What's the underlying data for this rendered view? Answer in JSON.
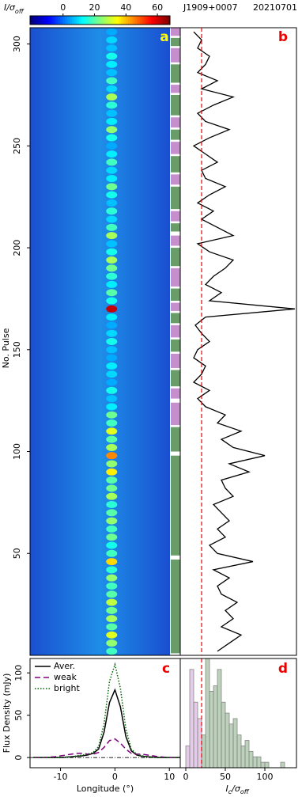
{
  "header": {
    "colorbar_label": {
      "main": "I/σ",
      "sub": "off"
    },
    "source": "J1909+0007",
    "date": "20210701"
  },
  "colorbar": {
    "clim": [
      -21,
      68
    ],
    "ticks": [
      0,
      20,
      40,
      60
    ]
  },
  "panel_a": {
    "type": "heatmap",
    "letter": "a",
    "ylabel": "No. Pulse",
    "ylim": [
      0,
      308
    ],
    "yticks": [
      50,
      100,
      150,
      200,
      250,
      300
    ],
    "pulses": [
      2,
      6,
      10,
      14,
      18,
      22,
      26,
      30,
      34,
      38,
      42,
      46,
      50,
      54,
      58,
      62,
      66,
      70,
      74,
      78,
      82,
      86,
      90,
      94,
      98,
      102,
      106,
      110,
      114,
      118,
      122,
      126,
      130,
      134,
      138,
      142,
      146,
      150,
      154,
      158,
      162,
      166,
      170,
      174,
      178,
      182,
      186,
      190,
      194,
      198,
      202,
      206,
      210,
      214,
      218,
      222,
      226,
      230,
      234,
      238,
      242,
      246,
      250,
      254,
      258,
      262,
      266,
      270,
      274,
      278,
      282,
      286,
      290,
      294,
      298,
      302,
      306
    ],
    "peak_values": [
      18,
      25,
      32,
      20,
      27,
      22,
      29,
      20,
      18,
      25,
      16,
      38,
      18,
      14,
      22,
      18,
      25,
      20,
      16,
      27,
      22,
      20,
      36,
      25,
      45,
      27,
      20,
      32,
      18,
      22,
      11,
      7,
      14,
      5,
      9,
      11,
      5,
      7,
      14,
      9,
      5,
      11,
      62,
      14,
      20,
      11,
      16,
      22,
      27,
      14,
      7,
      27,
      18,
      9,
      16,
      7,
      14,
      22,
      11,
      9,
      18,
      11,
      5,
      14,
      25,
      11,
      7,
      16,
      27,
      9,
      18,
      7,
      11,
      14,
      7,
      9,
      5
    ],
    "weak_color": "#c48fcb",
    "bright_color": "#6a9c69",
    "weak_segments": [
      [
        113,
        124
      ],
      [
        126,
        131
      ],
      [
        141,
        148
      ],
      [
        156,
        162
      ],
      [
        169,
        173
      ],
      [
        181,
        190
      ],
      [
        201,
        206
      ],
      [
        213,
        218
      ],
      [
        231,
        236
      ],
      [
        246,
        252
      ],
      [
        259,
        264
      ],
      [
        276,
        280
      ],
      [
        291,
        298
      ],
      [
        304,
        308
      ]
    ],
    "bright_segments": [
      [
        1,
        47
      ],
      [
        49,
        98
      ],
      [
        100,
        112
      ],
      [
        132,
        140
      ],
      [
        149,
        155
      ],
      [
        163,
        168
      ],
      [
        174,
        180
      ],
      [
        191,
        200
      ],
      [
        208,
        212
      ],
      [
        219,
        230
      ],
      [
        237,
        245
      ],
      [
        253,
        258
      ],
      [
        265,
        275
      ],
      [
        281,
        290
      ],
      [
        299,
        303
      ]
    ]
  },
  "panel_b": {
    "type": "line",
    "letter": "b",
    "color": "#000",
    "xlim": [
      -7,
      140
    ],
    "threshold": 20,
    "threshold_color": "#e00",
    "values": [
      40,
      55,
      70,
      45,
      60,
      50,
      65,
      45,
      40,
      55,
      35,
      85,
      40,
      30,
      50,
      40,
      55,
      45,
      35,
      60,
      50,
      45,
      80,
      55,
      100,
      60,
      45,
      70,
      40,
      50,
      25,
      15,
      30,
      10,
      20,
      25,
      10,
      15,
      30,
      20,
      12,
      25,
      138,
      30,
      45,
      25,
      35,
      50,
      60,
      30,
      15,
      60,
      40,
      20,
      35,
      15,
      30,
      50,
      25,
      20,
      40,
      25,
      10,
      30,
      55,
      25,
      15,
      35,
      60,
      20,
      40,
      15,
      25,
      30,
      15,
      20,
      10
    ]
  },
  "panel_c": {
    "type": "line",
    "letter": "c",
    "xlabel": "Longitude (°)",
    "ylabel": "Flux Density (mJy)",
    "xlim": [
      -15.6,
      12
    ],
    "ylim": [
      -12,
      117
    ],
    "xticks": [
      -10,
      0,
      10
    ],
    "yticks": [
      0,
      50,
      100
    ],
    "x": [
      -15,
      -14,
      -13,
      -12,
      -11,
      -10,
      -9,
      -8,
      -7,
      -6,
      -5,
      -4,
      -3,
      -2,
      -1,
      0,
      1,
      2,
      3,
      4,
      5,
      6,
      7,
      8,
      9,
      10,
      11,
      12
    ],
    "series": [
      {
        "name": "Aver.",
        "color": "#000",
        "dash": "",
        "values": [
          0,
          0,
          0,
          0,
          0,
          0,
          0.5,
          1,
          1.5,
          2,
          3,
          5,
          10,
          30,
          65,
          80,
          60,
          25,
          8,
          3,
          1.5,
          1,
          0.5,
          0,
          0,
          0,
          0,
          0
        ]
      },
      {
        "name": "weak",
        "color": "#800080",
        "dash": "7,4",
        "values": [
          0,
          0,
          0,
          0.5,
          1,
          2,
          3,
          4,
          5,
          5,
          4,
          4,
          6,
          12,
          20,
          22,
          17,
          10,
          5,
          4,
          4,
          3,
          2,
          1,
          0.5,
          0,
          0,
          0
        ]
      },
      {
        "name": "bright",
        "color": "#006400",
        "dash": "1.5,2",
        "values": [
          0,
          0,
          0,
          0,
          0,
          0,
          0.5,
          1,
          2,
          3,
          4,
          6,
          13,
          40,
          90,
          110,
          82,
          34,
          10,
          4,
          2,
          1,
          0.5,
          0,
          0,
          0,
          0,
          0
        ]
      }
    ]
  },
  "panel_d": {
    "type": "histogram",
    "letter": "d",
    "xlabel": {
      "main": "I",
      "sub1": "c",
      "mid": "/σ",
      "sub2": "off"
    },
    "xticks": [
      0,
      50,
      100
    ],
    "ylim": [
      0,
      20
    ],
    "bins": [
      0,
      5,
      10,
      15,
      20,
      25,
      30,
      35,
      40,
      45,
      50,
      55,
      60,
      65,
      70,
      75,
      80,
      85,
      90,
      95,
      100,
      105,
      110,
      115,
      120,
      125,
      130
    ],
    "counts": [
      4,
      18,
      12,
      9,
      6,
      20,
      14,
      15,
      18,
      12,
      10,
      8,
      9,
      6,
      4,
      5,
      3,
      2,
      2,
      1,
      1,
      0,
      0,
      0,
      1,
      0
    ]
  }
}
